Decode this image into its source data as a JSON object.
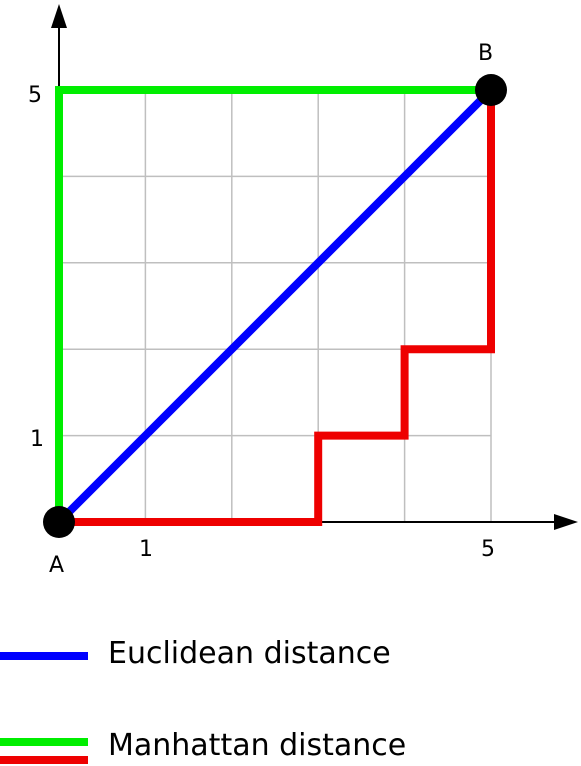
{
  "diagram": {
    "x_ticks": [
      "1",
      "5"
    ],
    "y_ticks": [
      "1",
      "5"
    ],
    "points": {
      "a": {
        "label": "A",
        "x": 0,
        "y": 0
      },
      "b": {
        "label": "B",
        "x": 5,
        "y": 5
      }
    },
    "grid_range": [
      0,
      5
    ],
    "paths": {
      "euclidean": {
        "color": "#0000ff",
        "points": [
          [
            0,
            0
          ],
          [
            5,
            5
          ]
        ]
      },
      "manhattan_green": {
        "color": "#00ee00",
        "points": [
          [
            0,
            0
          ],
          [
            0,
            5
          ],
          [
            5,
            5
          ]
        ]
      },
      "manhattan_red": {
        "color": "#ee0000",
        "points": [
          [
            0,
            0
          ],
          [
            3,
            0
          ],
          [
            3,
            1
          ],
          [
            4,
            1
          ],
          [
            4,
            2
          ],
          [
            5,
            2
          ],
          [
            5,
            5
          ]
        ]
      }
    }
  },
  "legend": {
    "euclidean": {
      "label": "Euclidean distance",
      "color": "#0000ff"
    },
    "manhattan": {
      "label": "Manhattan distance",
      "colors": [
        "#00ee00",
        "#ee0000"
      ]
    }
  }
}
